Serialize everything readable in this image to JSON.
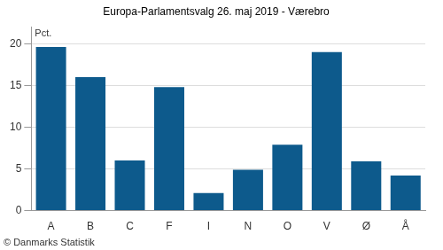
{
  "chart_data": {
    "type": "bar",
    "title": "Europa-Parlamentsvalg 26. maj 2019 - Værebro",
    "ylabel": "Pct.",
    "annotations": [
      "© Danmarks Statistik"
    ],
    "categories": [
      "A",
      "B",
      "C",
      "F",
      "I",
      "N",
      "O",
      "V",
      "Ø",
      "Å"
    ],
    "values": [
      19.6,
      16.0,
      6.0,
      14.8,
      2.1,
      4.9,
      7.9,
      19.0,
      5.9,
      4.2
    ],
    "color": "#0d5a8c",
    "ylim": [
      0,
      22
    ],
    "yticks": [
      0,
      5,
      10,
      15,
      20
    ],
    "grid": true
  }
}
